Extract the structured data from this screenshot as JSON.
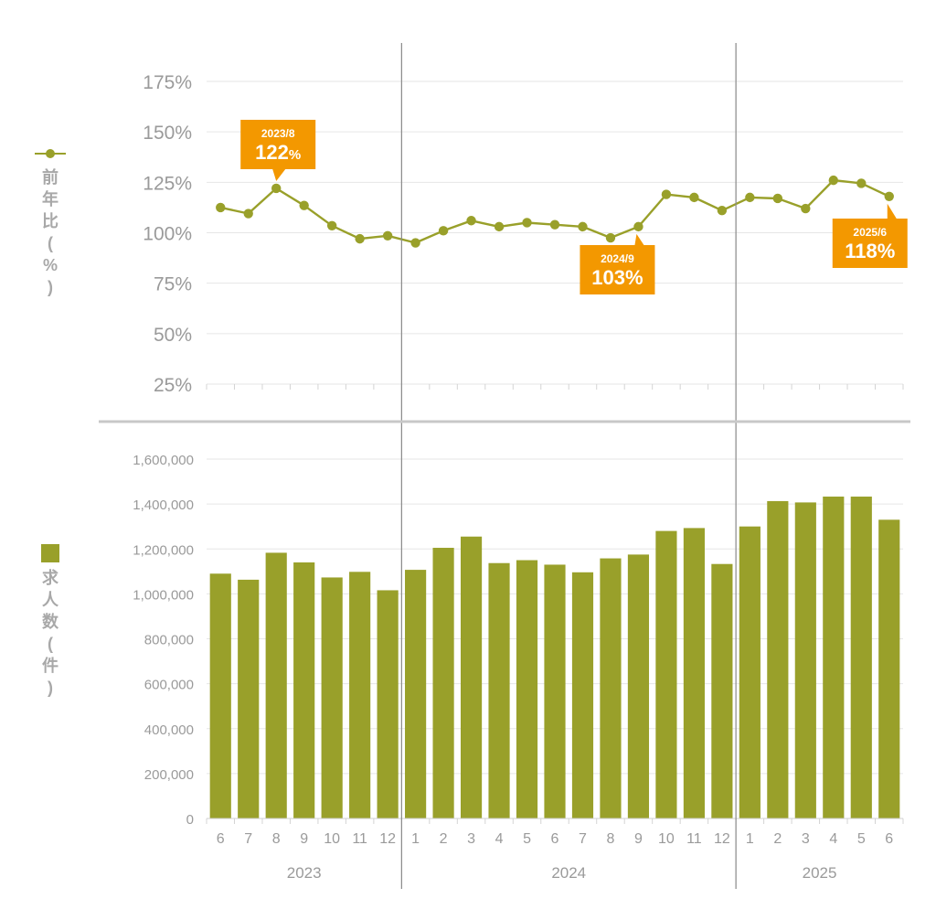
{
  "colors": {
    "series": "#99a02a",
    "callout": "#f39800",
    "grid": "#e6e6e6",
    "divider": "#8a8a8a",
    "section_rule": "#c8c8c8"
  },
  "legend": {
    "line_label": [
      "前",
      "年",
      "比",
      "(",
      "%",
      ")"
    ],
    "bar_label": [
      "求",
      "人",
      "数",
      "(",
      "件",
      ")"
    ],
    "line_icon": "line-with-dot-icon",
    "bar_icon": "square-icon"
  },
  "chart_data": [
    {
      "type": "line",
      "name": "前年比(%)",
      "x": [
        "2023/6",
        "2023/7",
        "2023/8",
        "2023/9",
        "2023/10",
        "2023/11",
        "2023/12",
        "2024/1",
        "2024/2",
        "2024/3",
        "2024/4",
        "2024/5",
        "2024/6",
        "2024/7",
        "2024/8",
        "2024/9",
        "2024/10",
        "2024/11",
        "2024/12",
        "2025/1",
        "2025/2",
        "2025/3",
        "2025/4",
        "2025/5",
        "2025/6"
      ],
      "values": [
        112.5,
        109.5,
        122,
        113.5,
        103.5,
        97,
        98.5,
        95,
        101,
        106,
        103,
        105,
        104,
        103,
        97.5,
        103,
        119,
        117.5,
        111,
        117.5,
        117,
        112,
        126,
        124.5,
        118
      ],
      "ylim": [
        25,
        185
      ],
      "yticks": [
        25,
        50,
        75,
        100,
        125,
        150,
        175
      ],
      "ytick_labels": [
        "25%",
        "50%",
        "75%",
        "100%",
        "125%",
        "150%",
        "175%"
      ],
      "annotations": [
        {
          "index": 2,
          "label": "2023/8",
          "value_text": "122",
          "unit_text": "%"
        },
        {
          "index": 15,
          "label": "2024/9",
          "value_text": "103%",
          "unit_text": ""
        },
        {
          "index": 24,
          "label": "2025/6",
          "value_text": "118%",
          "unit_text": ""
        }
      ]
    },
    {
      "type": "bar",
      "name": "求人数(件)",
      "x": [
        "2023/6",
        "2023/7",
        "2023/8",
        "2023/9",
        "2023/10",
        "2023/11",
        "2023/12",
        "2024/1",
        "2024/2",
        "2024/3",
        "2024/4",
        "2024/5",
        "2024/6",
        "2024/7",
        "2024/8",
        "2024/9",
        "2024/10",
        "2024/11",
        "2024/12",
        "2025/1",
        "2025/2",
        "2025/3",
        "2025/4",
        "2025/5",
        "2025/6"
      ],
      "values": [
        1090000,
        1063000,
        1183000,
        1140000,
        1073000,
        1098000,
        1016000,
        1107000,
        1205000,
        1255000,
        1137000,
        1150000,
        1130000,
        1096000,
        1158000,
        1175000,
        1280000,
        1293000,
        1133000,
        1300000,
        1413000,
        1407000,
        1433000,
        1433000,
        1330000
      ],
      "ylim": [
        0,
        1600000
      ],
      "yticks": [
        0,
        200000,
        400000,
        600000,
        800000,
        1000000,
        1200000,
        1400000,
        1600000
      ],
      "ytick_labels": [
        "0",
        "200,000",
        "400,000",
        "600,000",
        "800,000",
        "1,000,000",
        "1,200,000",
        "1,400,000",
        "1,600,000"
      ]
    }
  ],
  "x_axis": {
    "month_labels": [
      "6",
      "7",
      "8",
      "9",
      "10",
      "11",
      "12",
      "1",
      "2",
      "3",
      "4",
      "5",
      "6",
      "7",
      "8",
      "9",
      "10",
      "11",
      "12",
      "1",
      "2",
      "3",
      "4",
      "5",
      "6"
    ],
    "years": [
      {
        "label": "2023",
        "first_index": 0,
        "last_index": 6
      },
      {
        "label": "2024",
        "first_index": 7,
        "last_index": 18
      },
      {
        "label": "2025",
        "first_index": 19,
        "last_index": 24
      }
    ]
  }
}
